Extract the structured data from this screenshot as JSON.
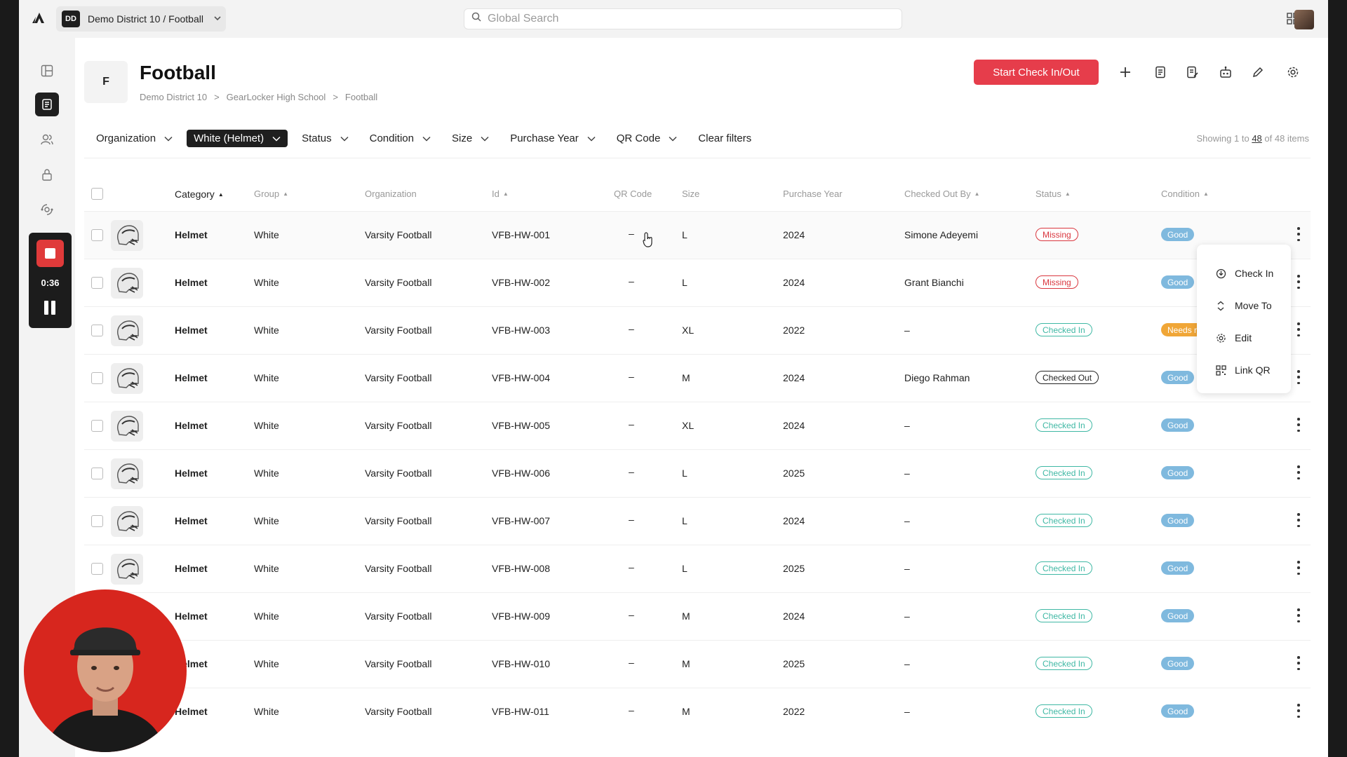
{
  "topbar": {
    "org_badge": "DD",
    "org_label": "Demo District 10 / Football",
    "search_placeholder": "Global Search"
  },
  "recorder": {
    "time": "0:36"
  },
  "header": {
    "avatar_letter": "F",
    "title": "Football",
    "breadcrumb": [
      "Demo District 10",
      ">",
      "GearLocker High School",
      ">",
      "Football"
    ],
    "primary_button": "Start Check In/Out"
  },
  "filters": {
    "items": [
      {
        "label": "Organization",
        "active": false
      },
      {
        "label": "White (Helmet)",
        "active": true
      },
      {
        "label": "Status",
        "active": false
      },
      {
        "label": "Condition",
        "active": false
      },
      {
        "label": "Size",
        "active": false
      },
      {
        "label": "Purchase Year",
        "active": false
      },
      {
        "label": "QR Code",
        "active": false
      }
    ],
    "clear_label": "Clear filters",
    "showing_prefix": "Showing 1 to",
    "showing_count": "48",
    "showing_suffix": "of 48 items"
  },
  "table": {
    "columns": {
      "category": "Category",
      "group": "Group",
      "organization": "Organization",
      "id": "Id",
      "qr": "QR Code",
      "size": "Size",
      "year": "Purchase Year",
      "checked_out_by": "Checked Out By",
      "status": "Status",
      "condition": "Condition"
    },
    "rows": [
      {
        "category": "Helmet",
        "group": "White",
        "organization": "Varsity Football",
        "id": "VFB-HW-001",
        "qr": "–",
        "size": "L",
        "year": "2024",
        "checked_out_by": "Simone Adeyemi",
        "status": "Missing",
        "condition": "Good"
      },
      {
        "category": "Helmet",
        "group": "White",
        "organization": "Varsity Football",
        "id": "VFB-HW-002",
        "qr": "–",
        "size": "L",
        "year": "2024",
        "checked_out_by": "Grant Bianchi",
        "status": "Missing",
        "condition": "Good"
      },
      {
        "category": "Helmet",
        "group": "White",
        "organization": "Varsity Football",
        "id": "VFB-HW-003",
        "qr": "–",
        "size": "XL",
        "year": "2022",
        "checked_out_by": "–",
        "status": "Checked In",
        "condition": "Needs repla"
      },
      {
        "category": "Helmet",
        "group": "White",
        "organization": "Varsity Football",
        "id": "VFB-HW-004",
        "qr": "–",
        "size": "M",
        "year": "2024",
        "checked_out_by": "Diego Rahman",
        "status": "Checked Out",
        "condition": "Good"
      },
      {
        "category": "Helmet",
        "group": "White",
        "organization": "Varsity Football",
        "id": "VFB-HW-005",
        "qr": "–",
        "size": "XL",
        "year": "2024",
        "checked_out_by": "–",
        "status": "Checked In",
        "condition": "Good"
      },
      {
        "category": "Helmet",
        "group": "White",
        "organization": "Varsity Football",
        "id": "VFB-HW-006",
        "qr": "–",
        "size": "L",
        "year": "2025",
        "checked_out_by": "–",
        "status": "Checked In",
        "condition": "Good"
      },
      {
        "category": "Helmet",
        "group": "White",
        "organization": "Varsity Football",
        "id": "VFB-HW-007",
        "qr": "–",
        "size": "L",
        "year": "2024",
        "checked_out_by": "–",
        "status": "Checked In",
        "condition": "Good"
      },
      {
        "category": "Helmet",
        "group": "White",
        "organization": "Varsity Football",
        "id": "VFB-HW-008",
        "qr": "–",
        "size": "L",
        "year": "2025",
        "checked_out_by": "–",
        "status": "Checked In",
        "condition": "Good"
      },
      {
        "category": "Helmet",
        "group": "White",
        "organization": "Varsity Football",
        "id": "VFB-HW-009",
        "qr": "–",
        "size": "M",
        "year": "2024",
        "checked_out_by": "–",
        "status": "Checked In",
        "condition": "Good"
      },
      {
        "category": "Helmet",
        "group": "White",
        "organization": "Varsity Football",
        "id": "VFB-HW-010",
        "qr": "–",
        "size": "M",
        "year": "2025",
        "checked_out_by": "–",
        "status": "Checked In",
        "condition": "Good"
      },
      {
        "category": "Helmet",
        "group": "White",
        "organization": "Varsity Football",
        "id": "VFB-HW-011",
        "qr": "–",
        "size": "M",
        "year": "2022",
        "checked_out_by": "–",
        "status": "Checked In",
        "condition": "Good"
      }
    ]
  },
  "row_menu": {
    "items": [
      {
        "label": "Check In",
        "icon": "check-in-icon"
      },
      {
        "label": "Move To",
        "icon": "move-icon"
      },
      {
        "label": "Edit",
        "icon": "gear-icon"
      },
      {
        "label": "Link QR",
        "icon": "qr-icon"
      }
    ]
  },
  "colors": {
    "primary": "#e63d4b",
    "missing": "#d9363e",
    "checked_in": "#3fb8a4",
    "good": "#7fb9de",
    "needs_replacement": "#f0a637",
    "dark": "#1f1f1f"
  }
}
